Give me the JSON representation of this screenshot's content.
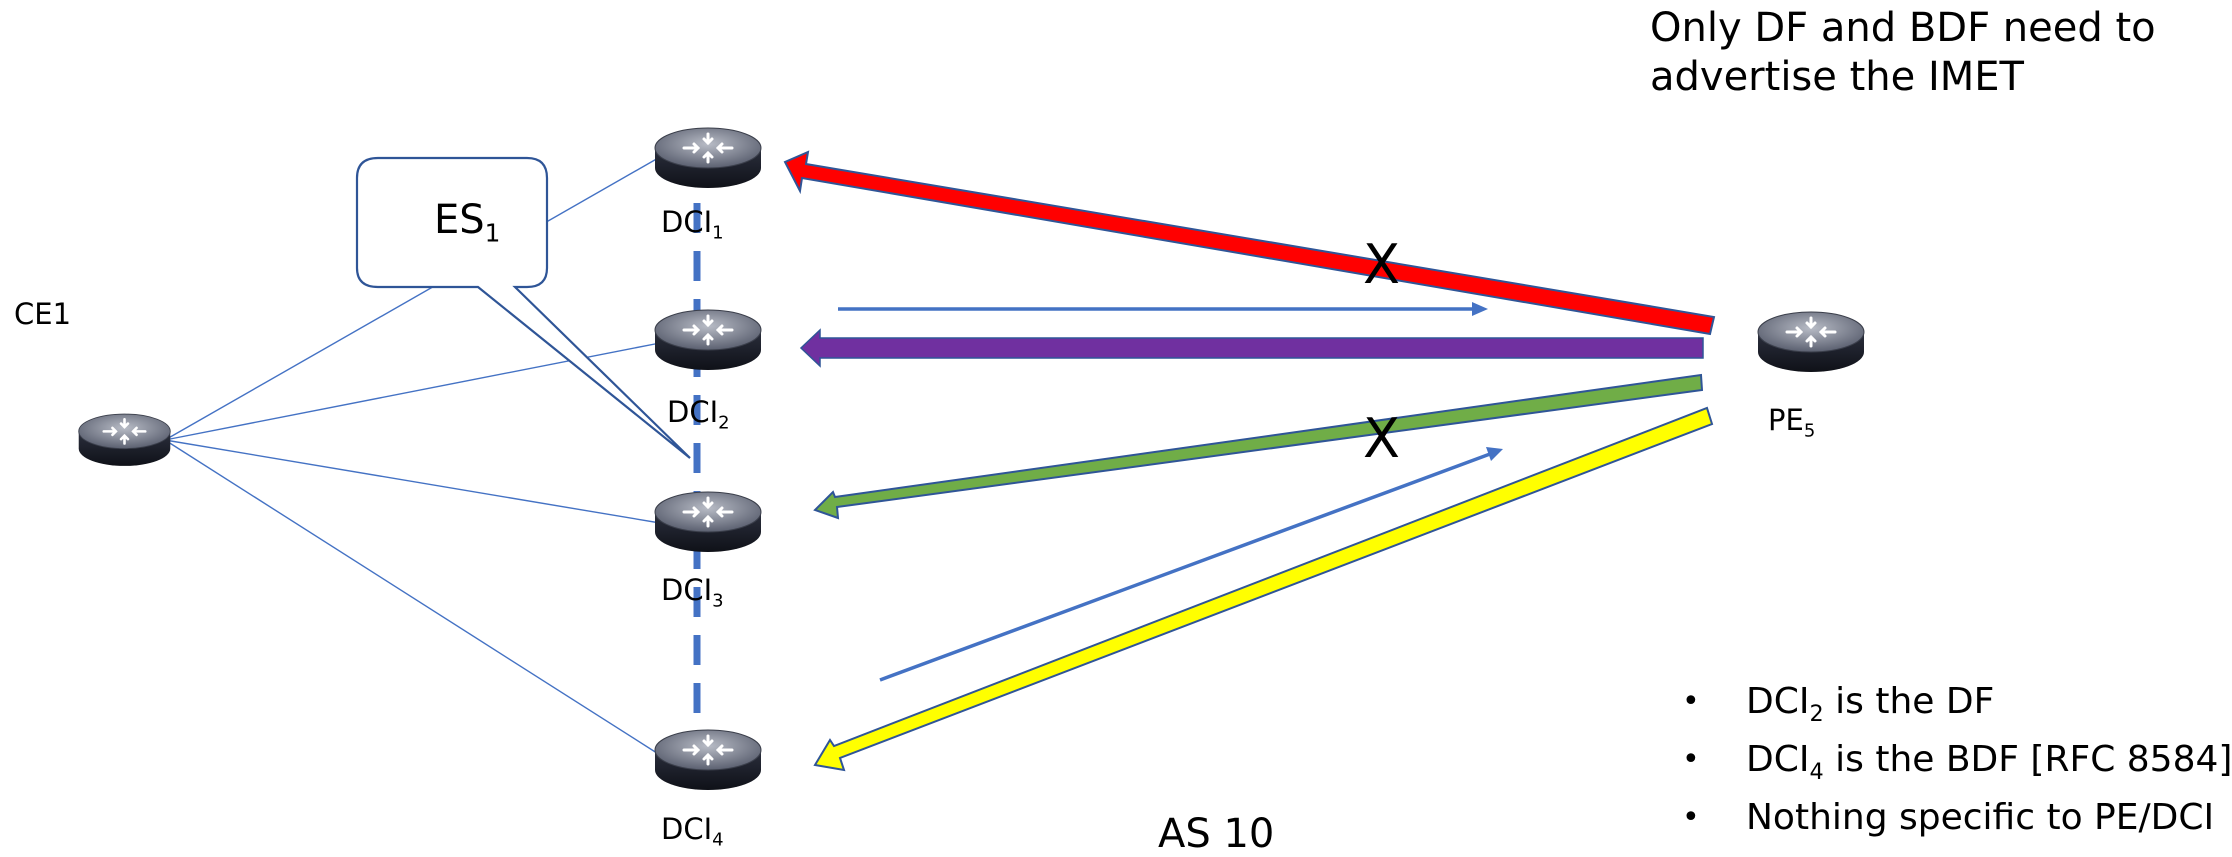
{
  "title": "Only DF and BDF need to advertise the IMET",
  "callout": {
    "main": "ES",
    "sub": "1"
  },
  "nodes": {
    "ce1": {
      "label": "CE1",
      "icon": "router-icon"
    },
    "dci1": {
      "main": "DCI",
      "sub": "1",
      "icon": "router-icon"
    },
    "dci2": {
      "main": "DCI",
      "sub": "2",
      "icon": "router-icon"
    },
    "dci3": {
      "main": "DCI",
      "sub": "3",
      "icon": "router-icon"
    },
    "dci4": {
      "main": "DCI",
      "sub": "4",
      "icon": "router-icon"
    },
    "pe5": {
      "main": "PE",
      "sub": "5",
      "icon": "router-icon"
    }
  },
  "blocked_marks": [
    "X",
    "X"
  ],
  "as_label": "AS 10",
  "notes": [
    {
      "bullet": "•",
      "pre": "DCI",
      "sub": "2",
      "post": " is the DF"
    },
    {
      "bullet": "•",
      "pre": "DCI",
      "sub": "4",
      "post": " is the BDF [RFC 8584]"
    },
    {
      "bullet": "•",
      "pre": "Nothing specific to PE/DCI",
      "sub": "",
      "post": ""
    }
  ],
  "colors": {
    "link_blue": "#4472c4",
    "arrow_red": "#ff0000",
    "arrow_purple": "#7030a0",
    "arrow_green": "#70ad47",
    "arrow_yellow": "#ffff00",
    "arrow_outline": "#2f5597",
    "callout_border": "#2f5597"
  }
}
